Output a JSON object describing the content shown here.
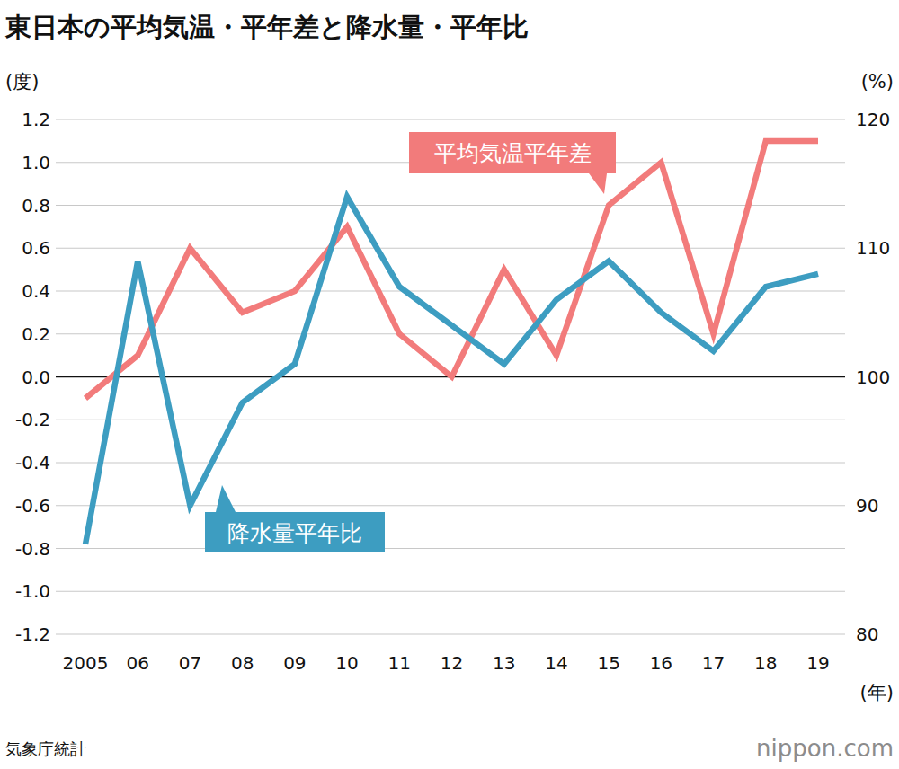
{
  "chart_data": {
    "type": "line",
    "title": "東日本の平均気温・平年差と降水量・平年比",
    "y_label": "(度)",
    "y2_label": "(%)",
    "x_label": "(年)",
    "source": "気象庁統計",
    "credit": "nippon.com",
    "categories": [
      "2005",
      "06",
      "07",
      "08",
      "09",
      "10",
      "11",
      "12",
      "13",
      "14",
      "15",
      "16",
      "17",
      "18",
      "19"
    ],
    "series": [
      {
        "name": "平均気温平年差",
        "color": "#f27b7b",
        "axis": "y",
        "values": [
          -0.1,
          0.1,
          0.6,
          0.3,
          0.4,
          0.7,
          0.2,
          0.0,
          0.5,
          0.1,
          0.8,
          1.0,
          0.2,
          1.1,
          1.1
        ]
      },
      {
        "name": "降水量平年比",
        "color": "#3d9dc1",
        "axis": "y2",
        "values": [
          87,
          109,
          90,
          98,
          101,
          114,
          107,
          104,
          101,
          106,
          109,
          105,
          102,
          107,
          108
        ]
      }
    ],
    "ylim": [
      -1.2,
      1.2
    ],
    "yticks": [
      1.2,
      {
        "value": 1,
        "label": "1.0"
      },
      0.8,
      0.6,
      0.4,
      0.2,
      {
        "value": 0,
        "label": "0.0"
      },
      -0.2,
      -0.4,
      -0.6,
      -0.8,
      {
        "value": -1,
        "label": "-1.0"
      },
      -1.2
    ],
    "y2lim": [
      80,
      120
    ],
    "y2ticks": [
      120,
      110,
      100,
      90,
      80
    ],
    "grid": true
  }
}
